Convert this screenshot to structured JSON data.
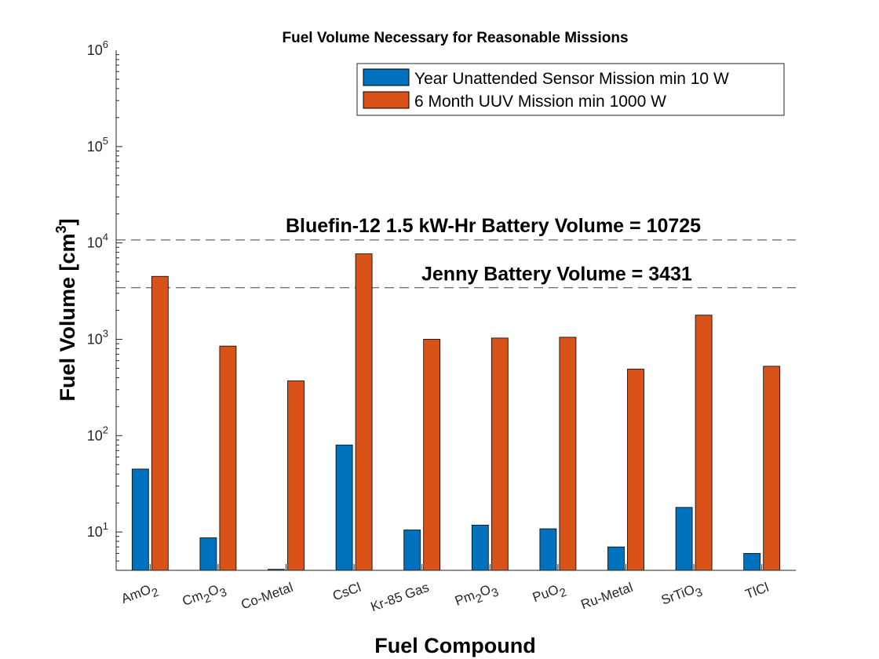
{
  "chart_data": {
    "type": "bar",
    "title": "Fuel Volume Necessary for Reasonable Missions",
    "xlabel": "Fuel Compound",
    "ylabel": "Fuel Volume [cm",
    "ylabel_sup": "3",
    "ylabel_end": "]",
    "y_scale": "log",
    "ylim": [
      4,
      1000000
    ],
    "grid": false,
    "legend_position": "top-right",
    "y_ticks": [
      {
        "value": 10,
        "base": "10",
        "exp": "1"
      },
      {
        "value": 100,
        "base": "10",
        "exp": "2"
      },
      {
        "value": 1000,
        "base": "10",
        "exp": "3"
      },
      {
        "value": 10000,
        "base": "10",
        "exp": "4"
      },
      {
        "value": 100000,
        "base": "10",
        "exp": "5"
      },
      {
        "value": 1000000,
        "base": "10",
        "exp": "6"
      }
    ],
    "categories": [
      {
        "main": "AmO",
        "sub": "2",
        "tail": ""
      },
      {
        "main": "Cm",
        "sub": "2",
        "tail": "O",
        "sub2": "3"
      },
      {
        "main": "Co-Metal",
        "sub": "",
        "tail": ""
      },
      {
        "main": "CsCl",
        "sub": "",
        "tail": ""
      },
      {
        "main": "Kr-85 Gas",
        "sub": "",
        "tail": ""
      },
      {
        "main": "Pm",
        "sub": "2",
        "tail": "O",
        "sub2": "3"
      },
      {
        "main": "PuO",
        "sub": "2",
        "tail": ""
      },
      {
        "main": "Ru-Metal",
        "sub": "",
        "tail": ""
      },
      {
        "main": "SrTiO",
        "sub": "3",
        "tail": ""
      },
      {
        "main": "TlCl",
        "sub": "",
        "tail": ""
      }
    ],
    "series": [
      {
        "name": "Year Unattended Sensor Mission min 10 W",
        "color": "#0072BD",
        "values": [
          45,
          8.7,
          4.1,
          80,
          10.5,
          11.8,
          10.8,
          7.0,
          18.0,
          6.0
        ]
      },
      {
        "name": "6 Month UUV Mission min 1000 W",
        "color": "#D95319",
        "values": [
          4500,
          850,
          370,
          7700,
          1000,
          1030,
          1050,
          490,
          1780,
          525
        ]
      }
    ],
    "reference_lines": [
      {
        "value": 10725,
        "label": "Bluefin-12 1.5 kW-Hr Battery Volume = 10725"
      },
      {
        "value": 3431,
        "label": "Jenny Battery Volume = 3431"
      }
    ]
  }
}
